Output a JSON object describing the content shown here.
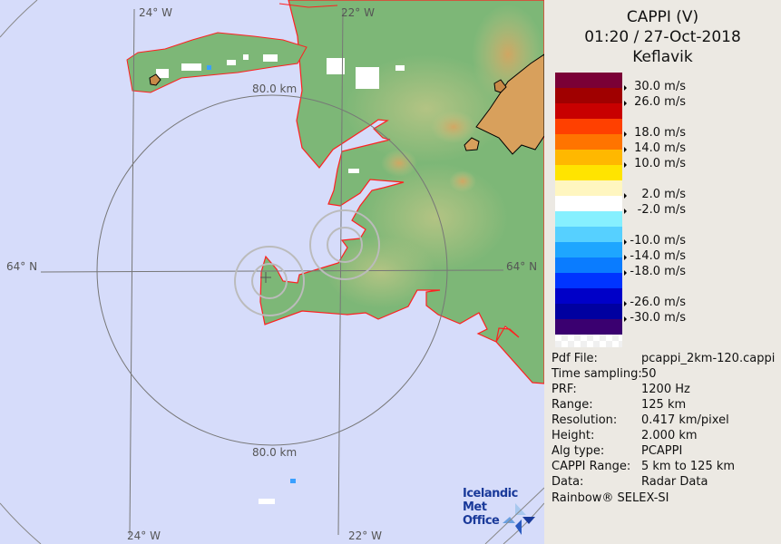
{
  "map": {
    "grid_labels": {
      "lon_top_left": "24° W",
      "lon_top_right": "22° W",
      "lon_bottom_left": "24° W",
      "lon_bottom_right": "22° W",
      "lat_left": "64° N",
      "lat_right": "64° N",
      "range_top": "80.0 km",
      "range_bottom": "80.0 km"
    },
    "logo": {
      "line1": "Icelandic Met",
      "line2": "Office"
    },
    "colors": {
      "sea": "#d6dcfa",
      "land": "#7db777",
      "coast": "#ff2020",
      "glacier_outline": "#000000"
    }
  },
  "panel": {
    "title": "CAPPI (V)",
    "datetime": "01:20 / 27-Oct-2018",
    "station": "Keflavik",
    "legend": {
      "colors": [
        "#7a0036",
        "#a00000",
        "#c80000",
        "#ff4000",
        "#ff7400",
        "#ffb800",
        "#ffe400",
        "#fff6c0",
        "#ffffff",
        "#86f0ff",
        "#56d0ff",
        "#1ea6ff",
        "#0a7cff",
        "#0034ff",
        "#0000c8",
        "#0000a0",
        "#3a0070"
      ],
      "labels": [
        "30.0 m/s",
        "26.0 m/s",
        "18.0 m/s",
        "14.0 m/s",
        "10.0 m/s",
        "2.0 m/s",
        "-2.0 m/s",
        "-10.0 m/s",
        "-14.0 m/s",
        "-18.0 m/s",
        "-26.0 m/s",
        "-30.0 m/s"
      ]
    },
    "info": [
      {
        "key": "Pdf File:",
        "value": "pcappi_2km-120.cappi"
      },
      {
        "key": "Time sampling:",
        "value": "50"
      },
      {
        "key": "PRF:",
        "value": "1200 Hz"
      },
      {
        "key": "Range:",
        "value": "125 km"
      },
      {
        "key": "Resolution:",
        "value": "0.417 km/pixel"
      },
      {
        "key": "Height:",
        "value": "2.000 km"
      },
      {
        "key": "Alg type:",
        "value": "PCAPPI"
      },
      {
        "key": "CAPPI Range:",
        "value": "5 km to 125 km"
      },
      {
        "key": "Data:",
        "value": "Radar Data"
      }
    ],
    "footer": "Rainbow® SELEX-SI"
  }
}
